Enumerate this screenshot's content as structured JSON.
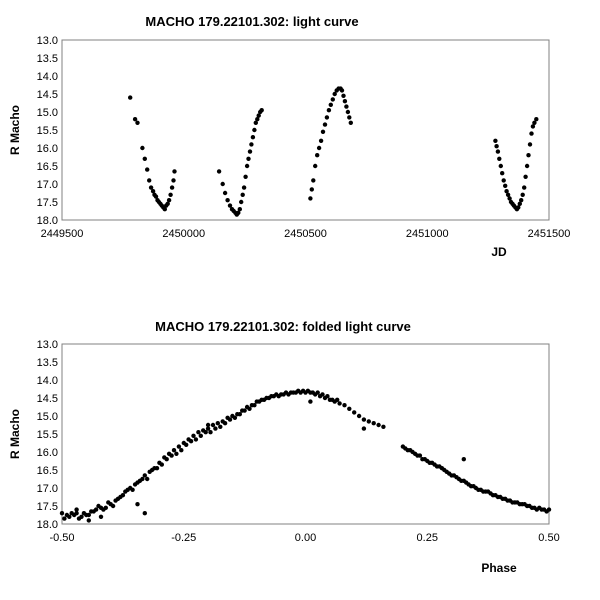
{
  "chart_data": [
    {
      "type": "scatter",
      "title": "MACHO 179.22101.302: light curve",
      "xlabel": "JD",
      "ylabel": "R Macho",
      "xlim": [
        2449500,
        2451500
      ],
      "ylim": [
        18.0,
        13.0
      ],
      "y_inverted": true,
      "grid": false,
      "xticks": [
        "2449500",
        "2450000",
        "2450500",
        "2451000",
        "2451500"
      ],
      "yticks": [
        "13.0",
        "13.5",
        "14.0",
        "14.5",
        "15.0",
        "15.5",
        "16.0",
        "16.5",
        "17.0",
        "17.5",
        "18.0"
      ],
      "marker_color": "#000000",
      "series": [
        {
          "x": [
            2449780,
            2449800,
            2449810,
            2449830,
            2449840,
            2449850,
            2449858,
            2449866,
            2449874,
            2449880,
            2449886,
            2449892,
            2449898,
            2449904,
            2449910,
            2449916,
            2449922,
            2449928,
            2449934,
            2449940,
            2449946,
            2449952,
            2449958,
            2449962,
            2450145,
            2450160,
            2450170,
            2450180,
            2450190,
            2450198,
            2450205,
            2450212,
            2450218,
            2450224,
            2450230,
            2450236,
            2450242,
            2450248,
            2450254,
            2450260,
            2450266,
            2450272,
            2450278,
            2450284,
            2450290,
            2450296,
            2450302,
            2450308,
            2450314,
            2450320,
            2450520,
            2450526,
            2450532,
            2450540,
            2450548,
            2450556,
            2450564,
            2450572,
            2450580,
            2450588,
            2450596,
            2450604,
            2450612,
            2450620,
            2450628,
            2450636,
            2450644,
            2450650,
            2450656,
            2450662,
            2450668,
            2450674,
            2450680,
            2450686,
            2451280,
            2451285,
            2451290,
            2451296,
            2451302,
            2451308,
            2451314,
            2451320,
            2451326,
            2451332,
            2451338,
            2451344,
            2451350,
            2451356,
            2451362,
            2451368,
            2451374,
            2451380,
            2451386,
            2451392,
            2451398,
            2451404,
            2451410,
            2451416,
            2451422,
            2451428,
            2451434,
            2451440,
            2451448
          ],
          "y": [
            14.6,
            15.2,
            15.3,
            16.0,
            16.3,
            16.6,
            16.9,
            17.1,
            17.2,
            17.3,
            17.35,
            17.45,
            17.5,
            17.55,
            17.6,
            17.65,
            17.7,
            17.6,
            17.55,
            17.45,
            17.3,
            17.1,
            16.9,
            16.65,
            16.65,
            17.0,
            17.25,
            17.45,
            17.6,
            17.7,
            17.75,
            17.8,
            17.85,
            17.8,
            17.7,
            17.5,
            17.3,
            17.1,
            16.8,
            16.5,
            16.3,
            16.1,
            15.9,
            15.7,
            15.5,
            15.3,
            15.2,
            15.1,
            15.0,
            14.95,
            17.4,
            17.15,
            16.9,
            16.5,
            16.2,
            16.0,
            15.8,
            15.55,
            15.35,
            15.15,
            14.95,
            14.8,
            14.65,
            14.5,
            14.4,
            14.35,
            14.35,
            14.4,
            14.55,
            14.7,
            14.85,
            15.0,
            15.15,
            15.3,
            15.8,
            15.95,
            16.1,
            16.3,
            16.5,
            16.7,
            16.9,
            17.05,
            17.2,
            17.3,
            17.4,
            17.5,
            17.55,
            17.6,
            17.65,
            17.7,
            17.65,
            17.55,
            17.45,
            17.3,
            17.1,
            16.8,
            16.5,
            16.2,
            15.9,
            15.6,
            15.4,
            15.3,
            15.2
          ]
        }
      ]
    },
    {
      "type": "scatter",
      "title": "MACHO 179.22101.302: folded light curve",
      "xlabel": "Phase",
      "ylabel": "R Macho",
      "xlim": [
        -0.5,
        0.5
      ],
      "ylim": [
        18.0,
        13.0
      ],
      "y_inverted": true,
      "grid": false,
      "xticks": [
        "-0.50",
        "-0.25",
        "0.00",
        "0.25",
        "0.50"
      ],
      "yticks": [
        "13.0",
        "13.5",
        "14.0",
        "14.5",
        "15.0",
        "15.5",
        "16.0",
        "16.5",
        "17.0",
        "17.5",
        "18.0"
      ],
      "marker_color": "#000000",
      "series": [
        {
          "x": [
            -0.5,
            -0.49,
            -0.48,
            -0.47,
            -0.46,
            -0.45,
            -0.44,
            -0.43,
            -0.42,
            -0.41,
            -0.4,
            -0.39,
            -0.38,
            -0.37,
            -0.36,
            -0.35,
            -0.34,
            -0.33,
            -0.32,
            -0.31,
            -0.3,
            -0.29,
            -0.28,
            -0.27,
            -0.26,
            -0.25,
            -0.24,
            -0.23,
            -0.22,
            -0.21,
            -0.2,
            -0.19,
            -0.18,
            -0.17,
            -0.16,
            -0.15,
            -0.14,
            -0.13,
            -0.12,
            -0.11,
            -0.1,
            -0.09,
            -0.08,
            -0.07,
            -0.06,
            -0.05,
            -0.04,
            -0.03,
            -0.02,
            -0.01,
            0.0,
            0.01,
            0.02,
            0.03,
            0.04,
            0.05,
            0.06,
            0.07,
            0.08,
            0.09,
            0.1,
            0.11,
            0.12,
            0.13,
            0.14,
            0.15,
            0.16,
            0.2,
            0.21,
            0.22,
            0.23,
            0.24,
            0.25,
            0.26,
            0.27,
            0.28,
            0.29,
            0.3,
            0.31,
            0.32,
            0.33,
            0.34,
            0.35,
            0.36,
            0.37,
            0.38,
            0.39,
            0.4,
            0.41,
            0.42,
            0.43,
            0.44,
            0.45,
            0.46,
            0.47,
            0.48,
            0.49,
            0.5,
            -0.495,
            -0.485,
            -0.475,
            -0.465,
            -0.455,
            -0.445,
            -0.435,
            -0.425,
            -0.415,
            -0.405,
            -0.395,
            -0.385,
            -0.375,
            -0.365,
            -0.355,
            -0.345,
            -0.335,
            -0.325,
            -0.315,
            -0.305,
            -0.295,
            -0.285,
            -0.275,
            -0.265,
            -0.255,
            -0.245,
            -0.235,
            -0.225,
            -0.215,
            -0.205,
            -0.195,
            -0.185,
            -0.175,
            -0.165,
            -0.155,
            -0.145,
            -0.135,
            -0.125,
            -0.115,
            -0.105,
            -0.095,
            -0.085,
            -0.075,
            -0.065,
            -0.055,
            -0.045,
            -0.035,
            -0.025,
            -0.015,
            -0.005,
            0.005,
            0.015,
            0.025,
            0.035,
            0.045,
            0.055,
            0.065,
            0.205,
            0.215,
            0.225,
            0.235,
            0.245,
            0.255,
            0.265,
            0.275,
            0.285,
            0.295,
            0.305,
            0.315,
            0.325,
            0.335,
            0.345,
            0.355,
            0.365,
            0.375,
            0.385,
            0.395,
            0.405,
            0.415,
            0.425,
            0.435,
            0.445,
            0.455,
            0.465,
            0.475,
            0.485,
            0.495,
            -0.47,
            -0.445,
            -0.42,
            -0.345,
            -0.33,
            -0.2,
            0.01,
            0.12,
            0.325
          ],
          "y": [
            17.7,
            17.75,
            17.7,
            17.7,
            17.8,
            17.75,
            17.65,
            17.6,
            17.55,
            17.55,
            17.45,
            17.35,
            17.25,
            17.1,
            17.0,
            16.9,
            16.8,
            16.65,
            16.55,
            16.45,
            16.3,
            16.15,
            16.05,
            15.95,
            15.85,
            15.75,
            15.65,
            15.55,
            15.45,
            15.4,
            15.35,
            15.25,
            15.2,
            15.15,
            15.05,
            15.0,
            14.95,
            14.85,
            14.75,
            14.7,
            14.6,
            14.55,
            14.5,
            14.45,
            14.4,
            14.4,
            14.35,
            14.35,
            14.35,
            14.35,
            14.35,
            14.35,
            14.4,
            14.45,
            14.5,
            14.55,
            14.6,
            14.65,
            14.7,
            14.8,
            14.9,
            15.0,
            15.1,
            15.15,
            15.2,
            15.25,
            15.3,
            15.85,
            15.95,
            16.0,
            16.1,
            16.2,
            16.25,
            16.3,
            16.4,
            16.45,
            16.55,
            16.65,
            16.7,
            16.8,
            16.85,
            16.95,
            17.0,
            17.05,
            17.1,
            17.15,
            17.2,
            17.25,
            17.3,
            17.35,
            17.4,
            17.45,
            17.45,
            17.5,
            17.55,
            17.55,
            17.6,
            17.6,
            17.85,
            17.8,
            17.75,
            17.85,
            17.7,
            17.75,
            17.65,
            17.5,
            17.6,
            17.4,
            17.5,
            17.3,
            17.2,
            17.05,
            17.05,
            16.85,
            16.75,
            16.75,
            16.5,
            16.45,
            16.35,
            16.2,
            16.1,
            16.05,
            15.95,
            15.8,
            15.7,
            15.65,
            15.55,
            15.45,
            15.45,
            15.35,
            15.3,
            15.2,
            15.1,
            15.05,
            14.95,
            14.85,
            14.8,
            14.7,
            14.6,
            14.55,
            14.5,
            14.45,
            14.45,
            14.4,
            14.4,
            14.35,
            14.3,
            14.3,
            14.3,
            14.35,
            14.35,
            14.4,
            14.45,
            14.55,
            14.55,
            15.9,
            15.95,
            16.05,
            16.1,
            16.2,
            16.3,
            16.35,
            16.4,
            16.5,
            16.6,
            16.65,
            16.75,
            16.8,
            16.9,
            16.95,
            17.05,
            17.1,
            17.1,
            17.2,
            17.25,
            17.3,
            17.35,
            17.4,
            17.4,
            17.45,
            17.5,
            17.55,
            17.6,
            17.6,
            17.65,
            17.6,
            17.9,
            17.8,
            17.45,
            17.7,
            15.25,
            14.6,
            15.35,
            16.2
          ]
        }
      ]
    }
  ]
}
